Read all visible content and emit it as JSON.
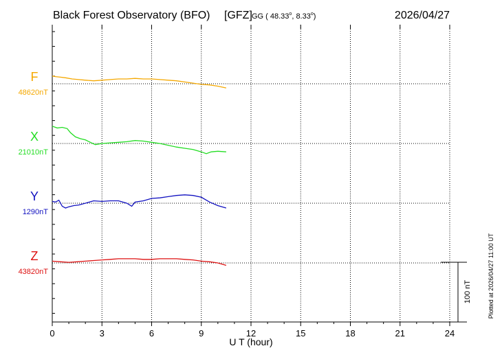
{
  "chart_data": {
    "type": "line",
    "title": {
      "station": "Black Forest Observatory (BFO)",
      "institute": "[GFZ]",
      "coords_prefix": "GG ( 48.33",
      "coords_sep": ",   8.33",
      "coords_suffix": ")",
      "degree": "o",
      "date": "2026/04/27"
    },
    "xlabel": "U T (hour)",
    "xlim": [
      0,
      24
    ],
    "xticks": [
      0,
      3,
      6,
      9,
      12,
      15,
      18,
      21,
      24
    ],
    "scale_label": "100 nT",
    "scale_nT": 100,
    "plotted_note": "Plotted at 2026/04/27 11:00 UT",
    "colors": {
      "F": "#f5a800",
      "X": "#22dd22",
      "Y": "#1010c0",
      "Z": "#dd1111",
      "grid": "#000000"
    },
    "series": [
      {
        "name": "F",
        "baseline_label": "48620nT",
        "baseline": 48620,
        "x": [
          0,
          0.2,
          0.5,
          0.8,
          1.2,
          1.6,
          2.0,
          2.5,
          3.0,
          3.5,
          4.0,
          4.5,
          5.0,
          5.5,
          6.0,
          6.5,
          7.0,
          7.5,
          8.0,
          8.5,
          9.0,
          9.5,
          10.0,
          10.5
        ],
        "values": [
          48633,
          48632,
          48631,
          48630,
          48628,
          48627,
          48626,
          48625,
          48626,
          48627,
          48628,
          48628,
          48629,
          48628,
          48628,
          48627,
          48626,
          48625,
          48623,
          48621,
          48619,
          48618,
          48616,
          48613
        ]
      },
      {
        "name": "X",
        "baseline_label": "21010nT",
        "baseline": 21010,
        "x": [
          0,
          0.3,
          0.6,
          0.9,
          1.1,
          1.4,
          1.7,
          2.0,
          2.3,
          2.6,
          3.0,
          3.5,
          4.0,
          4.5,
          5.0,
          5.5,
          6.0,
          6.5,
          7.0,
          7.5,
          8.0,
          8.5,
          9.0,
          9.3,
          9.6,
          10.0,
          10.5
        ],
        "values": [
          21039,
          21036,
          21037,
          21035,
          21028,
          21021,
          21018,
          21016,
          21012,
          21008,
          21010,
          21011,
          21012,
          21013,
          21015,
          21014,
          21012,
          21010,
          21007,
          21004,
          21002,
          21000,
          20996,
          20993,
          20996,
          20997,
          20996
        ]
      },
      {
        "name": "Y",
        "baseline_label": "1290nT",
        "baseline": 1290,
        "x": [
          0,
          0.2,
          0.4,
          0.6,
          0.8,
          1.0,
          1.3,
          1.6,
          2.0,
          2.5,
          3.0,
          3.5,
          4.0,
          4.5,
          4.8,
          5.0,
          5.5,
          6.0,
          6.5,
          7.0,
          7.5,
          8.0,
          8.5,
          9.0,
          9.5,
          10.0,
          10.5
        ],
        "values": [
          1293,
          1292,
          1295,
          1285,
          1282,
          1284,
          1286,
          1287,
          1290,
          1294,
          1293,
          1294,
          1294,
          1290,
          1285,
          1292,
          1294,
          1298,
          1299,
          1301,
          1303,
          1304,
          1303,
          1300,
          1292,
          1286,
          1282
        ]
      },
      {
        "name": "Z",
        "baseline_label": "43820nT",
        "baseline": 43820,
        "x": [
          0,
          0.5,
          1.0,
          1.5,
          2.0,
          2.5,
          3.0,
          3.5,
          4.0,
          4.5,
          5.0,
          5.5,
          6.0,
          6.5,
          7.0,
          7.5,
          8.0,
          8.5,
          9.0,
          9.5,
          10.0,
          10.5
        ],
        "values": [
          43823,
          43822,
          43821,
          43822,
          43823,
          43824,
          43825,
          43826,
          43827,
          43827,
          43827,
          43826,
          43826,
          43827,
          43827,
          43827,
          43826,
          43825,
          43823,
          43822,
          43820,
          43816
        ]
      }
    ]
  }
}
